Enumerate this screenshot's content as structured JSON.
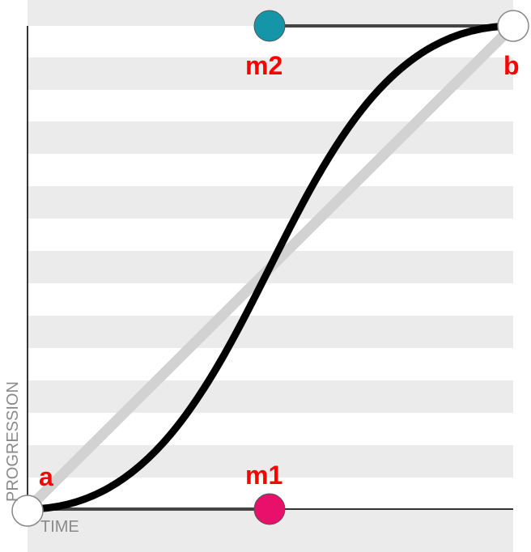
{
  "diagram": {
    "x_axis_label": "TIME",
    "y_axis_label": "PROGRESSION",
    "points": {
      "start": {
        "label": "a",
        "color": "#ffffff"
      },
      "end": {
        "label": "b",
        "color": "#ffffff"
      },
      "control1": {
        "label": "m1",
        "color": "#e8106a"
      },
      "control2": {
        "label": "m2",
        "color": "#1596a8"
      }
    },
    "colors": {
      "stripe": "#ebebeb",
      "curve": "#000000",
      "linear": "#d2d2d2",
      "handle": "#444444",
      "label": "#ff0000"
    }
  }
}
